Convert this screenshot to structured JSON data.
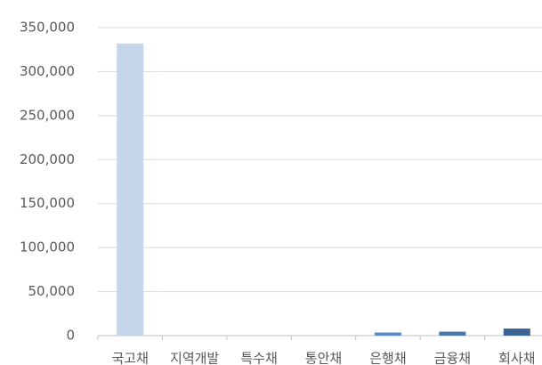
{
  "chart_data": {
    "type": "bar",
    "categories": [
      "국고채",
      "지역개발",
      "특수채",
      "통안채",
      "은행채",
      "금융채",
      "회사채"
    ],
    "values": [
      332000,
      0,
      0,
      0,
      3500,
      4500,
      8000
    ],
    "colors": [
      "#c5d5ea",
      "#a9c3e2",
      "#8fb0d9",
      "#769ecf",
      "#5b8bc3",
      "#4a77ad",
      "#3b6393"
    ],
    "ylim": [
      0,
      350000
    ],
    "yticks": [
      0,
      {
        "value": 50000,
        "label": "50,000"
      },
      {
        "value": 100000,
        "label": "100,000"
      },
      {
        "value": 150000,
        "label": "150,000"
      },
      {
        "value": 200000,
        "label": "200,000"
      },
      {
        "value": 250000,
        "label": "250,000"
      },
      {
        "value": 300000,
        "label": "300,000"
      },
      {
        "value": 350000,
        "label": "350,000"
      }
    ],
    "grid": true
  }
}
